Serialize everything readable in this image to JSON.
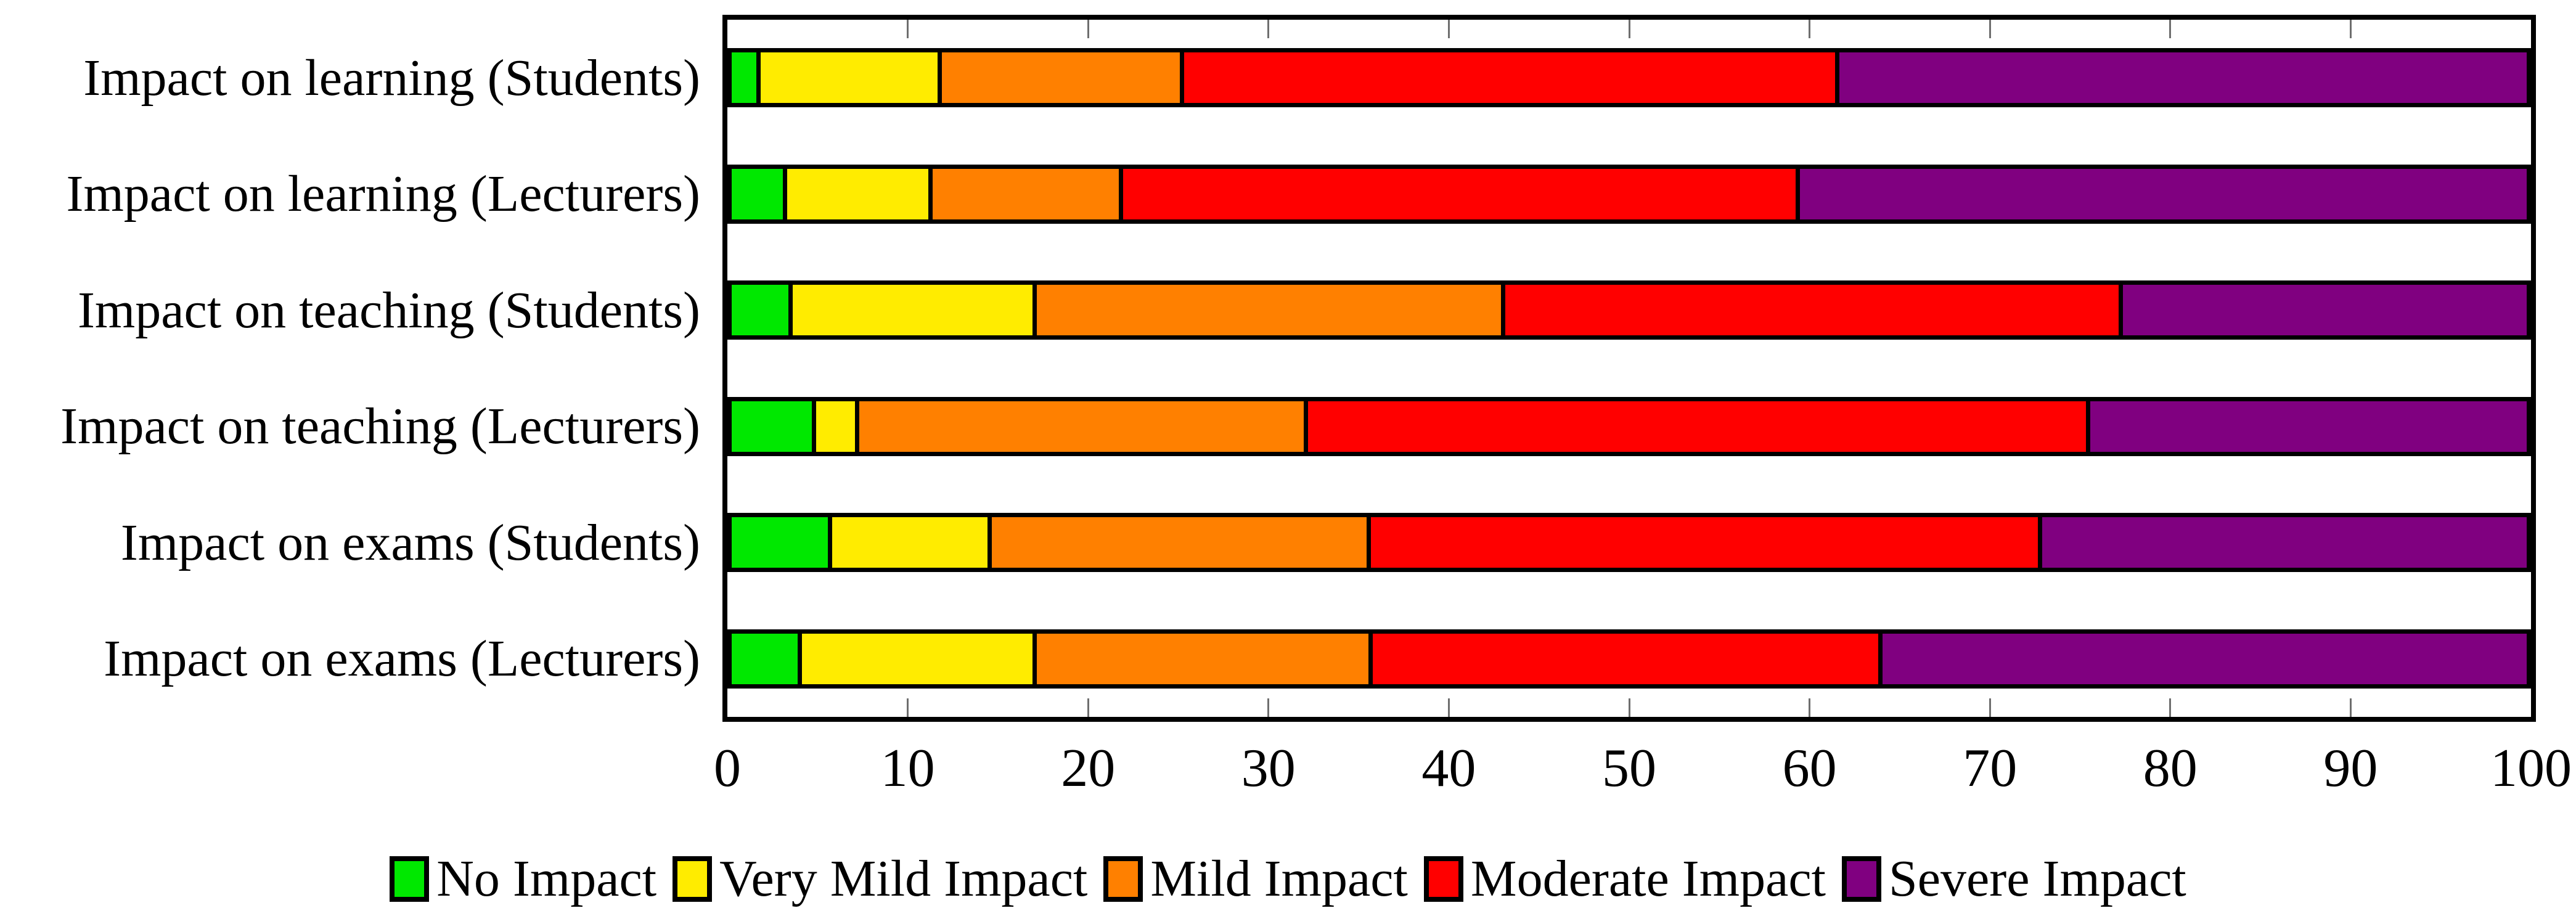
{
  "chart_data": {
    "type": "bar",
    "orientation": "horizontal",
    "stacked": true,
    "title": "",
    "xlabel": "",
    "ylabel": "",
    "xlim": [
      0,
      100
    ],
    "x_ticks": [
      0,
      10,
      20,
      30,
      40,
      50,
      60,
      70,
      80,
      90,
      100
    ],
    "grid": false,
    "legend_position": "bottom",
    "categories": [
      "Impact on learning (Students)",
      "Impact on learning (Lecturers)",
      "Impact on teaching (Students)",
      "Impact on teaching (Lecturers)",
      "Impact on exams (Students)",
      "Impact on exams (Lecturers)"
    ],
    "series": [
      {
        "name": "No Impact",
        "color": "#00E800",
        "values": [
          1.6,
          3.1,
          3.4,
          4.7,
          5.6,
          3.9
        ]
      },
      {
        "name": "Very Mild Impact",
        "color": "#FFEC00",
        "values": [
          10.1,
          8.1,
          13.6,
          2.4,
          8.9,
          13.1
        ]
      },
      {
        "name": "Mild Impact",
        "color": "#FF8000",
        "values": [
          13.5,
          10.6,
          26.1,
          25.0,
          21.1,
          18.7
        ]
      },
      {
        "name": "Moderate Impact",
        "color": "#FF0000",
        "values": [
          36.5,
          37.7,
          34.4,
          43.6,
          37.4,
          28.4
        ]
      },
      {
        "name": "Severe Impact",
        "color": "#800080",
        "values": [
          38.3,
          40.5,
          22.5,
          24.3,
          27.0,
          35.9
        ]
      }
    ]
  },
  "styles": {
    "frame_color": "#000000",
    "bar_border_color": "#000000",
    "tick_color": "#6e6e6e",
    "background": "#ffffff",
    "text_color": "#000000"
  }
}
